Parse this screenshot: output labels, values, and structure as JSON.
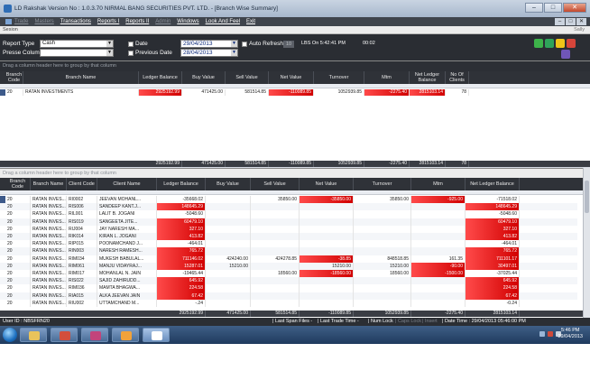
{
  "window": {
    "title": "LD Rakshak Version No : 1.0.3.70 NIRMAL BANG SECURITIES PVT. LTD. - [Branch Wise Summary]",
    "controls": [
      "–",
      "□",
      "✕"
    ]
  },
  "menu": {
    "items": [
      {
        "label": "Trade",
        "enabled": false
      },
      {
        "label": "Masters",
        "enabled": false
      },
      {
        "label": "Transactions",
        "enabled": true
      },
      {
        "label": "Reports I",
        "enabled": true
      },
      {
        "label": "Reports II",
        "enabled": true
      },
      {
        "label": "Admin",
        "enabled": false
      },
      {
        "label": "Windows",
        "enabled": true
      },
      {
        "label": "Look And Feel",
        "enabled": true
      },
      {
        "label": "Exit",
        "enabled": true
      }
    ],
    "mdi_controls": [
      "–",
      "□",
      "✕"
    ]
  },
  "child": {
    "caption_left": "Sesion",
    "caption_right": "Sally"
  },
  "filters": {
    "report_type_label": "Report Type",
    "report_type_value": "Cash",
    "press_column_label": "Presse Column",
    "press_column_value": "",
    "date_label": "Date",
    "date_value": "29/04/2013",
    "prev_date_label": "Previous Date",
    "prev_date_value": "28/04/2013",
    "auto_refresh_label": "Auto Refresh",
    "refresh_interval": "10",
    "lbs_text": "LBS On 5:42:41 PM",
    "lbs_count": "00:02"
  },
  "summary_grid": {
    "group_hint": "Drag a column header here to group by that column",
    "columns": [
      "Branch Code",
      "Branch Name",
      "Ledger Balance",
      "Buy Value",
      "Sell Value",
      "Net Value",
      "Turnover",
      "Mtm",
      "Net Ledger Balance",
      "No Of Clients"
    ],
    "rows": [
      {
        "branch_code": "20",
        "branch_name": "RATAN INVESTMENTS",
        "ledger_balance": "2925192.99",
        "buy_value": "471425.00",
        "sell_value": "581514.85",
        "net_value": "-110089.85",
        "turnover": "1052939.85",
        "mtm": "-2275.40",
        "net_ledger_balance": "2815103.14",
        "no_of_clients": "78"
      }
    ],
    "totals": [
      "2925192.99",
      "471425.00",
      "581514.85",
      "-110089.85",
      "1052939.85",
      "-2275.40",
      "2815103.14",
      "78"
    ]
  },
  "client_grid": {
    "group_hint": "Drag a column header here to group by that column",
    "columns": [
      "Branch Code",
      "Branch Name",
      "Client Code",
      "Client Name",
      "Ledger Balance",
      "Buy Value",
      "Sell Value",
      "Net Value",
      "Turnover",
      "Mtm",
      "Net Ledger Balance"
    ],
    "rows": [
      {
        "bc": "20",
        "bn": "RATAN INVES...",
        "cc": "RI0002",
        "cn": "JEEVAN MOHANL...",
        "lb": "-35668.02",
        "bv": "",
        "sv": "35850.00",
        "nv": "-35850.00",
        "to": "35850.00",
        "mtm": "-925.00",
        "nlb": "-71518.02",
        "lb_red": false,
        "nv_red": true,
        "mtm_red": true,
        "nlb_red": false
      },
      {
        "bc": "20",
        "bn": "RATAN INVES...",
        "cc": "RIS006",
        "cn": "SANDEEP KANT.J...",
        "lb": "148645.29",
        "bv": "",
        "sv": "",
        "nv": "",
        "to": "",
        "mtm": "",
        "nlb": "148645.29",
        "lb_red": true,
        "nv_red": false,
        "mtm_red": false,
        "nlb_red": true
      },
      {
        "bc": "20",
        "bn": "RATAN INVES...",
        "cc": "RIL001",
        "cn": "LALIT B. JOGANI",
        "lb": "-5048.60",
        "bv": "",
        "sv": "",
        "nv": "",
        "to": "",
        "mtm": "",
        "nlb": "-5048.60",
        "lb_red": false,
        "nv_red": false,
        "mtm_red": false,
        "nlb_red": false
      },
      {
        "bc": "20",
        "bn": "RATAN INVES...",
        "cc": "RIS019",
        "cn": "SANGEETA JITE...",
        "lb": "60479.10",
        "bv": "",
        "sv": "",
        "nv": "",
        "to": "",
        "mtm": "",
        "nlb": "60479.10",
        "lb_red": true,
        "nv_red": false,
        "mtm_red": false,
        "nlb_red": true
      },
      {
        "bc": "20",
        "bn": "RATAN INVES...",
        "cc": "RIJ004",
        "cn": "JAY NARESH MA...",
        "lb": "327.10",
        "bv": "",
        "sv": "",
        "nv": "",
        "to": "",
        "mtm": "",
        "nlb": "327.10",
        "lb_red": true,
        "nv_red": false,
        "mtm_red": false,
        "nlb_red": true
      },
      {
        "bc": "20",
        "bn": "RATAN INVES...",
        "cc": "RIK014",
        "cn": "KIRAN L. JOGANI",
        "lb": "413.82",
        "bv": "",
        "sv": "",
        "nv": "",
        "to": "",
        "mtm": "",
        "nlb": "413.82",
        "lb_red": true,
        "nv_red": false,
        "mtm_red": false,
        "nlb_red": true
      },
      {
        "bc": "20",
        "bn": "RATAN INVES...",
        "cc": "RIP015",
        "cn": "POONAMCHAND J...",
        "lb": "-464.01",
        "bv": "",
        "sv": "",
        "nv": "",
        "to": "",
        "mtm": "",
        "nlb": "-464.01",
        "lb_red": false,
        "nv_red": false,
        "mtm_red": false,
        "nlb_red": false
      },
      {
        "bc": "20",
        "bn": "RATAN INVES...",
        "cc": "RIN003",
        "cn": "NARESH RAMESH...",
        "lb": "765.72",
        "bv": "",
        "sv": "",
        "nv": "",
        "to": "",
        "mtm": "",
        "nlb": "765.72",
        "lb_red": true,
        "nv_red": false,
        "mtm_red": false,
        "nlb_red": true
      },
      {
        "bc": "20",
        "bn": "RATAN INVES...",
        "cc": "RIM034",
        "cn": "MUKESH BABULAL...",
        "lb": "711146.02",
        "bv": "424240.00",
        "sv": "424278.85",
        "nv": "-38.85",
        "to": "848518.85",
        "mtm": "161.35",
        "nlb": "711101.17",
        "lb_red": true,
        "nv_red": true,
        "mtm_red": false,
        "nlb_red": true
      },
      {
        "bc": "20",
        "bn": "RATAN INVES...",
        "cc": "RIM061",
        "cn": "MANJU VIDAYRAJ...",
        "lb": "15287.01",
        "bv": "15210.00",
        "sv": "",
        "nv": "15210.00",
        "to": "15210.00",
        "mtm": "-90.00",
        "nlb": "30497.01",
        "lb_red": true,
        "nv_red": false,
        "mtm_red": true,
        "nlb_red": true
      },
      {
        "bc": "20",
        "bn": "RATAN INVES...",
        "cc": "RIM017",
        "cn": "MOHANLAL N. JAIN",
        "lb": "-19465.44",
        "bv": "",
        "sv": "18560.00",
        "nv": "-18560.00",
        "to": "18560.00",
        "mtm": "-1500.00",
        "nlb": "-37025.44",
        "lb_red": false,
        "nv_red": true,
        "mtm_red": true,
        "nlb_red": false
      },
      {
        "bc": "20",
        "bn": "RATAN INVES...",
        "cc": "RIS022",
        "cn": "SAJID ZAHIRUDD...",
        "lb": "645.92",
        "bv": "",
        "sv": "",
        "nv": "",
        "to": "",
        "mtm": "",
        "nlb": "645.92",
        "lb_red": true,
        "nv_red": false,
        "mtm_red": false,
        "nlb_red": true
      },
      {
        "bc": "20",
        "bn": "RATAN INVES...",
        "cc": "RIM036",
        "cn": "MAMTA BHAGWA...",
        "lb": "224.58",
        "bv": "",
        "sv": "",
        "nv": "",
        "to": "",
        "mtm": "",
        "nlb": "224.58",
        "lb_red": true,
        "nv_red": false,
        "mtm_red": false,
        "nlb_red": true
      },
      {
        "bc": "20",
        "bn": "RATAN INVES...",
        "cc": "RIA015",
        "cn": "ALKA JEEVAN JAIN",
        "lb": "67.42",
        "bv": "",
        "sv": "",
        "nv": "",
        "to": "",
        "mtm": "",
        "nlb": "67.42",
        "lb_red": true,
        "nv_red": false,
        "mtm_red": false,
        "nlb_red": true
      },
      {
        "bc": "20",
        "bn": "RATAN INVES...",
        "cc": "RIU002",
        "cn": "UTTAMCHAND M...",
        "lb": "-.24",
        "bv": "",
        "sv": "",
        "nv": "",
        "to": "",
        "mtm": "",
        "nlb": "-0.24",
        "lb_red": false,
        "nv_red": false,
        "mtm_red": false,
        "nlb_red": false
      }
    ],
    "totals": [
      "2925192.99",
      "471425.00",
      "581514.85",
      "-110089.85",
      "1052939.85",
      "-2275.40",
      "2815103.14"
    ]
  },
  "status": {
    "user": "User ID : NBSFRN20",
    "items": [
      "| Last Span Files -",
      "| Last Trade Time -",
      "| Num Lock",
      "| Caps Lock",
      "| Insert",
      "| Date Time : 29/04/2013 05:46:00 PM"
    ]
  },
  "taskbar": {
    "time": "5:46 PM",
    "date": "29/04/2013"
  },
  "colors": {
    "negative_fill": "#e30000",
    "header_bg": "#2f3238",
    "panel_bg": "#2a2d33"
  }
}
